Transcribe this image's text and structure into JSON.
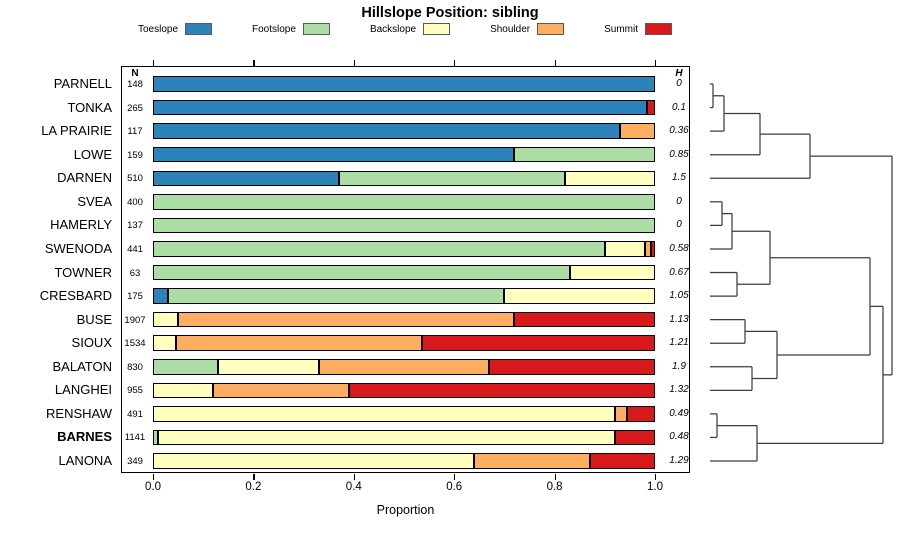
{
  "title": "Hillslope Position: sibling",
  "legend": [
    {
      "label": "Toeslope",
      "key": "toeslope",
      "color": "#2b83ba"
    },
    {
      "label": "Footslope",
      "key": "footslope",
      "color": "#abdda4"
    },
    {
      "label": "Backslope",
      "key": "backslope",
      "color": "#ffffbf"
    },
    {
      "label": "Shoulder",
      "key": "shoulder",
      "color": "#fdae61"
    },
    {
      "label": "Summit",
      "key": "summit",
      "color": "#d7191c"
    }
  ],
  "columns": {
    "n_header": "N",
    "h_header": "H"
  },
  "axis": {
    "xlabel": "Proportion",
    "tick_values": [
      0.0,
      0.2,
      0.4,
      0.6,
      0.8,
      1.0
    ],
    "tick_labels": [
      "0.0",
      "0.2",
      "0.4",
      "0.6",
      "0.8",
      "1.0"
    ]
  },
  "chart_data": {
    "type": "bar",
    "orientation": "horizontal",
    "stacked": true,
    "title": "Hillslope Position: sibling",
    "xlabel": "Proportion",
    "xlim": [
      0,
      1
    ],
    "series_names": [
      "Toeslope",
      "Footslope",
      "Backslope",
      "Shoulder",
      "Summit"
    ],
    "rows": [
      {
        "name": "PARNELL",
        "n": 148,
        "h": "0",
        "bold": false,
        "segments": [
          [
            "toeslope",
            1.0
          ]
        ]
      },
      {
        "name": "TONKA",
        "n": 265,
        "h": "0.1",
        "bold": false,
        "segments": [
          [
            "toeslope",
            0.985
          ],
          [
            "summit",
            0.015
          ]
        ]
      },
      {
        "name": "LA PRAIRIE",
        "n": 117,
        "h": "0.36",
        "bold": false,
        "segments": [
          [
            "toeslope",
            0.93
          ],
          [
            "shoulder",
            0.07
          ]
        ]
      },
      {
        "name": "LOWE",
        "n": 159,
        "h": "0.85",
        "bold": false,
        "segments": [
          [
            "toeslope",
            0.72
          ],
          [
            "footslope",
            0.28
          ]
        ]
      },
      {
        "name": "DARNEN",
        "n": 510,
        "h": "1.5",
        "bold": false,
        "segments": [
          [
            "toeslope",
            0.37
          ],
          [
            "footslope",
            0.45
          ],
          [
            "backslope",
            0.18
          ]
        ]
      },
      {
        "name": "SVEA",
        "n": 400,
        "h": "0",
        "bold": false,
        "segments": [
          [
            "footslope",
            1.0
          ]
        ]
      },
      {
        "name": "HAMERLY",
        "n": 137,
        "h": "0",
        "bold": false,
        "segments": [
          [
            "footslope",
            1.0
          ]
        ]
      },
      {
        "name": "SWENODA",
        "n": 441,
        "h": "0.58",
        "bold": false,
        "segments": [
          [
            "footslope",
            0.9
          ],
          [
            "backslope",
            0.08
          ],
          [
            "shoulder",
            0.012
          ],
          [
            "summit",
            0.008
          ]
        ]
      },
      {
        "name": "TOWNER",
        "n": 63,
        "h": "0.67",
        "bold": false,
        "segments": [
          [
            "footslope",
            0.83
          ],
          [
            "backslope",
            0.17
          ]
        ]
      },
      {
        "name": "CRESBARD",
        "n": 175,
        "h": "1.05",
        "bold": false,
        "segments": [
          [
            "toeslope",
            0.03
          ],
          [
            "footslope",
            0.67
          ],
          [
            "backslope",
            0.3
          ]
        ]
      },
      {
        "name": "BUSE",
        "n": 1907,
        "h": "1.13",
        "bold": false,
        "segments": [
          [
            "backslope",
            0.05
          ],
          [
            "shoulder",
            0.67
          ],
          [
            "summit",
            0.28
          ]
        ]
      },
      {
        "name": "SIOUX",
        "n": 1534,
        "h": "1.21",
        "bold": false,
        "segments": [
          [
            "backslope",
            0.045
          ],
          [
            "shoulder",
            0.49
          ],
          [
            "summit",
            0.465
          ]
        ]
      },
      {
        "name": "BALATON",
        "n": 830,
        "h": "1.9",
        "bold": false,
        "segments": [
          [
            "footslope",
            0.13
          ],
          [
            "backslope",
            0.2
          ],
          [
            "shoulder",
            0.34
          ],
          [
            "summit",
            0.33
          ]
        ]
      },
      {
        "name": "LANGHEI",
        "n": 955,
        "h": "1.32",
        "bold": false,
        "segments": [
          [
            "backslope",
            0.12
          ],
          [
            "shoulder",
            0.27
          ],
          [
            "summit",
            0.61
          ]
        ]
      },
      {
        "name": "RENSHAW",
        "n": 491,
        "h": "0.49",
        "bold": false,
        "segments": [
          [
            "backslope",
            0.92
          ],
          [
            "shoulder",
            0.025
          ],
          [
            "summit",
            0.055
          ]
        ]
      },
      {
        "name": "BARNES",
        "n": 1141,
        "h": "0.48",
        "bold": true,
        "segments": [
          [
            "footslope",
            0.01
          ],
          [
            "backslope",
            0.91
          ],
          [
            "summit",
            0.08
          ]
        ]
      },
      {
        "name": "LANONA",
        "n": 349,
        "h": "1.29",
        "bold": false,
        "segments": [
          [
            "backslope",
            0.64
          ],
          [
            "shoulder",
            0.23
          ],
          [
            "summit",
            0.13
          ]
        ]
      }
    ],
    "dendrogram": {
      "leaf_order": [
        "PARNELL",
        "TONKA",
        "LA PRAIRIE",
        "LOWE",
        "DARNEN",
        "SVEA",
        "HAMERLY",
        "SWENODA",
        "TOWNER",
        "CRESBARD",
        "BUSE",
        "SIOUX",
        "BALATON",
        "LANGHEI",
        "RENSHAW",
        "BARNES",
        "LANONA"
      ],
      "merges": [
        {
          "id": "M1",
          "a": "L0",
          "b": "L1",
          "x": 713
        },
        {
          "id": "M2",
          "a": "M1",
          "b": "L2",
          "x": 724
        },
        {
          "id": "M3",
          "a": "M2",
          "b": "L3",
          "x": 760
        },
        {
          "id": "M4",
          "a": "M3",
          "b": "L4",
          "x": 810
        },
        {
          "id": "M5",
          "a": "L5",
          "b": "L6",
          "x": 722
        },
        {
          "id": "M6",
          "a": "M5",
          "b": "L7",
          "x": 732
        },
        {
          "id": "M7",
          "a": "L8",
          "b": "L9",
          "x": 737
        },
        {
          "id": "M8",
          "a": "M6",
          "b": "M7",
          "x": 770
        },
        {
          "id": "M9",
          "a": "L10",
          "b": "L11",
          "x": 745
        },
        {
          "id": "M10",
          "a": "L12",
          "b": "L13",
          "x": 752
        },
        {
          "id": "M11",
          "a": "M9",
          "b": "M10",
          "x": 777
        },
        {
          "id": "M12",
          "a": "M8",
          "b": "M11",
          "x": 870
        },
        {
          "id": "M13",
          "a": "L14",
          "b": "L15",
          "x": 717
        },
        {
          "id": "M14",
          "a": "M13",
          "b": "L16",
          "x": 757
        },
        {
          "id": "M15",
          "a": "M12",
          "b": "M14",
          "x": 883
        },
        {
          "id": "M16",
          "a": "M4",
          "b": "M15",
          "x": 892
        }
      ]
    }
  }
}
